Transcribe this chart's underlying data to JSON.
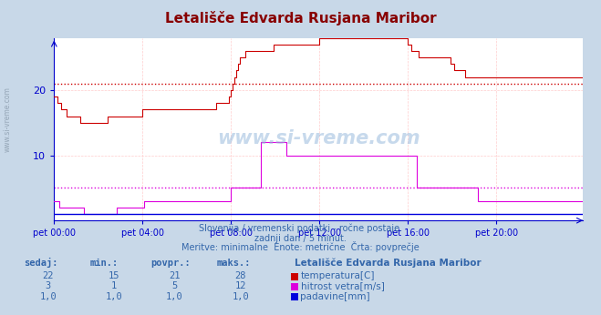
{
  "title": "Letališče Edvarda Rusjana Maribor",
  "bg_color": "#c8d8e8",
  "plot_bg_color": "#ffffff",
  "axis_color": "#0000cc",
  "text_color": "#3366aa",
  "title_color": "#880000",
  "subtitle1": "Slovenija / vremenski podatki - ročne postaje.",
  "subtitle2": "zadnji dan / 5 minut.",
  "subtitle3": "Meritve: minimalne  Enote: metrične  Črta: povprečje",
  "legend_title": "Letališče Edvarda Rusjana Maribor",
  "watermark": "www.si-vreme.com",
  "xticklabels": [
    "pet 00:00",
    "pet 04:00",
    "pet 08:00",
    "pet 12:00",
    "pet 16:00",
    "pet 20:00"
  ],
  "xtick_positions": [
    0,
    48,
    96,
    144,
    192,
    240
  ],
  "ylim": [
    0,
    28
  ],
  "yticks": [
    10,
    20
  ],
  "total_points": 288,
  "temp_color": "#cc0000",
  "wind_color": "#dd00dd",
  "rain_color": "#0000dd",
  "temp_avg": 21,
  "wind_avg": 5,
  "temp_data": [
    19,
    19,
    18,
    18,
    17,
    17,
    17,
    16,
    16,
    16,
    16,
    16,
    16,
    16,
    15,
    15,
    15,
    15,
    15,
    15,
    15,
    15,
    15,
    15,
    15,
    15,
    15,
    15,
    15,
    16,
    16,
    16,
    16,
    16,
    16,
    16,
    16,
    16,
    16,
    16,
    16,
    16,
    16,
    16,
    16,
    16,
    16,
    16,
    17,
    17,
    17,
    17,
    17,
    17,
    17,
    17,
    17,
    17,
    17,
    17,
    17,
    17,
    17,
    17,
    17,
    17,
    17,
    17,
    17,
    17,
    17,
    17,
    17,
    17,
    17,
    17,
    17,
    17,
    17,
    17,
    17,
    17,
    17,
    17,
    17,
    17,
    17,
    17,
    18,
    18,
    18,
    18,
    18,
    18,
    18,
    19,
    20,
    21,
    22,
    23,
    24,
    25,
    25,
    25,
    26,
    26,
    26,
    26,
    26,
    26,
    26,
    26,
    26,
    26,
    26,
    26,
    26,
    26,
    26,
    27,
    27,
    27,
    27,
    27,
    27,
    27,
    27,
    27,
    27,
    27,
    27,
    27,
    27,
    27,
    27,
    27,
    27,
    27,
    27,
    27,
    27,
    27,
    27,
    27,
    28,
    28,
    28,
    28,
    28,
    28,
    28,
    28,
    28,
    28,
    28,
    28,
    28,
    28,
    28,
    28,
    28,
    28,
    28,
    28,
    28,
    28,
    28,
    28,
    28,
    28,
    28,
    28,
    28,
    28,
    28,
    28,
    28,
    28,
    28,
    28,
    28,
    28,
    28,
    28,
    28,
    28,
    28,
    28,
    28,
    28,
    28,
    28,
    27,
    27,
    26,
    26,
    26,
    26,
    25,
    25,
    25,
    25,
    25,
    25,
    25,
    25,
    25,
    25,
    25,
    25,
    25,
    25,
    25,
    25,
    25,
    24,
    24,
    23,
    23,
    23,
    23,
    23,
    23,
    22,
    22,
    22,
    22,
    22,
    22,
    22,
    22,
    22,
    22,
    22,
    22,
    22,
    22,
    22,
    22,
    22,
    22,
    22,
    22,
    22,
    22,
    22,
    22,
    22,
    22,
    22,
    22,
    22,
    22,
    22,
    22,
    22,
    22,
    22,
    22,
    22,
    22,
    22,
    22,
    22,
    22,
    22,
    22,
    22,
    22,
    22,
    22,
    22,
    22,
    22,
    22,
    22,
    22,
    22,
    22,
    22,
    22,
    22,
    22,
    22,
    22,
    22,
    22,
    22
  ],
  "wind_data": [
    3,
    3,
    3,
    2,
    2,
    2,
    2,
    2,
    2,
    2,
    2,
    2,
    2,
    2,
    2,
    2,
    1,
    1,
    1,
    1,
    1,
    1,
    1,
    1,
    1,
    1,
    1,
    1,
    1,
    1,
    1,
    1,
    1,
    1,
    2,
    2,
    2,
    2,
    2,
    2,
    2,
    2,
    2,
    2,
    2,
    2,
    2,
    2,
    2,
    3,
    3,
    3,
    3,
    3,
    3,
    3,
    3,
    3,
    3,
    3,
    3,
    3,
    3,
    3,
    3,
    3,
    3,
    3,
    3,
    3,
    3,
    3,
    3,
    3,
    3,
    3,
    3,
    3,
    3,
    3,
    3,
    3,
    3,
    3,
    3,
    3,
    3,
    3,
    3,
    3,
    3,
    3,
    3,
    3,
    3,
    3,
    5,
    5,
    5,
    5,
    5,
    5,
    5,
    5,
    5,
    5,
    5,
    5,
    5,
    5,
    5,
    5,
    12,
    12,
    12,
    12,
    12,
    12,
    12,
    12,
    12,
    12,
    12,
    12,
    12,
    12,
    10,
    10,
    10,
    10,
    10,
    10,
    10,
    10,
    10,
    10,
    10,
    10,
    10,
    10,
    10,
    10,
    10,
    10,
    10,
    10,
    10,
    10,
    10,
    10,
    10,
    10,
    10,
    10,
    10,
    10,
    10,
    10,
    10,
    10,
    10,
    10,
    10,
    10,
    10,
    10,
    10,
    10,
    10,
    10,
    10,
    10,
    10,
    10,
    10,
    10,
    10,
    10,
    10,
    10,
    10,
    10,
    10,
    10,
    10,
    10,
    10,
    10,
    10,
    10,
    10,
    10,
    10,
    10,
    10,
    10,
    10,
    5,
    5,
    5,
    5,
    5,
    5,
    5,
    5,
    5,
    5,
    5,
    5,
    5,
    5,
    5,
    5,
    5,
    5,
    5,
    5,
    5,
    5,
    5,
    5,
    5,
    5,
    5,
    5,
    5,
    5,
    5,
    5,
    5,
    3,
    3,
    3,
    3,
    3,
    3,
    3,
    3,
    3,
    3,
    3,
    3,
    3,
    3,
    3,
    3,
    3,
    3,
    3,
    3,
    3,
    3,
    3,
    3,
    3,
    3,
    3,
    3,
    3,
    3,
    3,
    3,
    3,
    3,
    3,
    3,
    3,
    3,
    3,
    3,
    3,
    3,
    3,
    3,
    3,
    3,
    3,
    3,
    3,
    3,
    3,
    3,
    3,
    3,
    3,
    3,
    3,
    3
  ],
  "rain_data_flat": 1.0,
  "table_headers": [
    "sedaj:",
    "min.:",
    "povpr.:",
    "maks.:"
  ],
  "table_data": [
    [
      "22",
      "15",
      "21",
      "28"
    ],
    [
      "3",
      "1",
      "5",
      "12"
    ],
    [
      "1,0",
      "1,0",
      "1,0",
      "1,0"
    ]
  ],
  "legend_labels": [
    "temperatura[C]",
    "hitrost vetra[m/s]",
    "padavine[mm]"
  ],
  "legend_colors": [
    "#cc0000",
    "#dd00dd",
    "#0000dd"
  ]
}
